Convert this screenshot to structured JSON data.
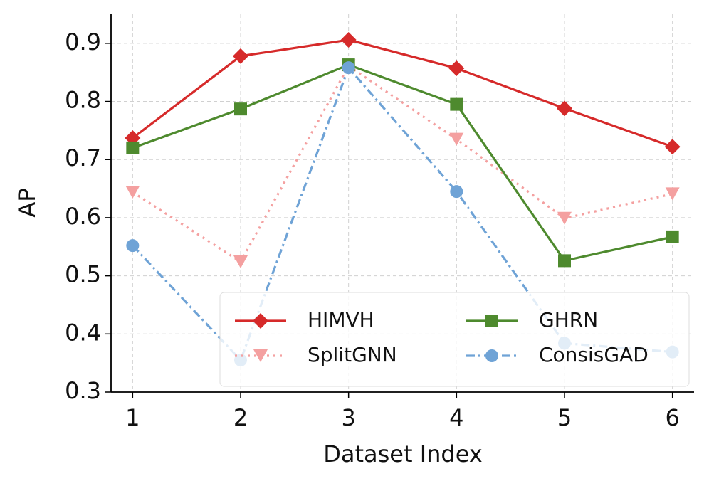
{
  "chart_data": {
    "type": "line",
    "xlabel": "Dataset Index",
    "ylabel": "AP",
    "x": [
      1,
      2,
      3,
      4,
      5,
      6
    ],
    "xlim": [
      0.8,
      6.2
    ],
    "xticks": [
      1,
      2,
      3,
      4,
      5,
      6
    ],
    "ylim": [
      0.3,
      0.95
    ],
    "yticks": [
      0.3,
      0.4,
      0.5,
      0.6,
      0.7,
      0.8,
      0.9
    ],
    "grid": true,
    "legend": "lower right",
    "series": [
      {
        "name": "HIMVH",
        "color": "#d62a2a",
        "dash": "solid",
        "marker": "diamond",
        "values": [
          0.737,
          0.878,
          0.906,
          0.857,
          0.788,
          0.722
        ]
      },
      {
        "name": "SplitGNN",
        "color": "#f4a0a0",
        "dash": "dotted",
        "marker": "triangle-down",
        "values": [
          0.644,
          0.524,
          0.861,
          0.735,
          0.599,
          0.641
        ]
      },
      {
        "name": "GHRN",
        "color": "#4e8a2e",
        "dash": "solid",
        "marker": "square",
        "values": [
          0.72,
          0.787,
          0.863,
          0.795,
          0.526,
          0.567
        ]
      },
      {
        "name": "ConsisGAD",
        "color": "#6fa3d6",
        "dash": "dashdot",
        "marker": "circle",
        "values": [
          0.552,
          0.355,
          0.858,
          0.645,
          0.384,
          0.369
        ]
      }
    ]
  }
}
